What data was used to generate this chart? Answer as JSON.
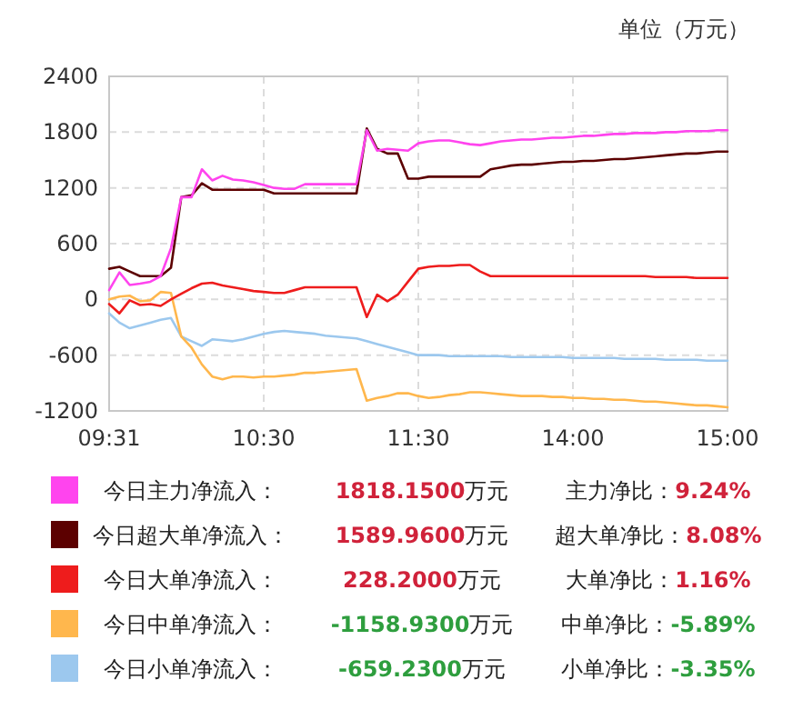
{
  "chart_data": {
    "type": "line",
    "ylabel": "单位（万元）",
    "categories": [
      "09:31",
      null,
      null,
      null,
      null,
      null,
      null,
      null,
      null,
      null,
      null,
      null,
      null,
      null,
      null,
      "10:30",
      null,
      null,
      null,
      null,
      null,
      null,
      null,
      null,
      null,
      null,
      null,
      null,
      null,
      null,
      "11:30",
      null,
      null,
      null,
      null,
      null,
      null,
      null,
      null,
      null,
      null,
      null,
      null,
      null,
      null,
      "14:00",
      null,
      null,
      null,
      null,
      null,
      null,
      null,
      null,
      null,
      null,
      null,
      null,
      null,
      null,
      "15:00"
    ],
    "ylim": [
      -1200,
      2400
    ],
    "yticks": [
      -1200,
      -600,
      0,
      600,
      1200,
      1800,
      2400
    ],
    "grid": true,
    "legend": "bottom",
    "line_style": "solid",
    "series": [
      {
        "name": "今日主力净流入：",
        "color": "#ff44ee",
        "values": [
          100,
          290,
          155,
          170,
          190,
          250,
          550,
          1100,
          1100,
          1400,
          1280,
          1330,
          1290,
          1280,
          1260,
          1230,
          1200,
          1190,
          1190,
          1240,
          1240,
          1240,
          1240,
          1240,
          1240,
          1820,
          1600,
          1620,
          1610,
          1600,
          1680,
          1700,
          1710,
          1710,
          1690,
          1670,
          1660,
          1680,
          1700,
          1710,
          1720,
          1720,
          1730,
          1740,
          1740,
          1750,
          1760,
          1760,
          1770,
          1780,
          1780,
          1790,
          1790,
          1790,
          1800,
          1800,
          1810,
          1810,
          1810,
          1820,
          1820
        ]
      },
      {
        "name": "今日超大单净流入：",
        "color": "#5c0000",
        "values": [
          330,
          350,
          300,
          250,
          250,
          250,
          340,
          1100,
          1120,
          1250,
          1180,
          1180,
          1180,
          1180,
          1180,
          1180,
          1140,
          1140,
          1140,
          1140,
          1140,
          1140,
          1140,
          1140,
          1140,
          1840,
          1620,
          1570,
          1570,
          1300,
          1300,
          1320,
          1320,
          1320,
          1320,
          1320,
          1320,
          1400,
          1420,
          1440,
          1450,
          1450,
          1460,
          1470,
          1480,
          1480,
          1490,
          1490,
          1500,
          1510,
          1510,
          1520,
          1530,
          1540,
          1550,
          1560,
          1570,
          1570,
          1580,
          1590,
          1590
        ]
      },
      {
        "name": "今日大单净流入：",
        "color": "#ee1c1c",
        "values": [
          -50,
          -150,
          -10,
          -60,
          -50,
          -70,
          0,
          60,
          120,
          170,
          180,
          150,
          130,
          110,
          90,
          80,
          70,
          70,
          100,
          130,
          130,
          130,
          130,
          130,
          130,
          -190,
          50,
          -20,
          50,
          190,
          330,
          350,
          360,
          360,
          370,
          370,
          300,
          250,
          250,
          250,
          250,
          250,
          250,
          250,
          250,
          250,
          250,
          250,
          250,
          250,
          250,
          250,
          250,
          240,
          240,
          240,
          240,
          230,
          230,
          230,
          230
        ]
      },
      {
        "name": "今日中单净流入：",
        "color": "#ffb74d",
        "values": [
          0,
          30,
          40,
          -20,
          -10,
          80,
          70,
          -400,
          -520,
          -700,
          -830,
          -860,
          -830,
          -830,
          -840,
          -830,
          -830,
          -820,
          -810,
          -790,
          -790,
          -780,
          -770,
          -760,
          -750,
          -1090,
          -1060,
          -1040,
          -1010,
          -1010,
          -1040,
          -1060,
          -1050,
          -1030,
          -1020,
          -1000,
          -1000,
          -1010,
          -1020,
          -1030,
          -1040,
          -1040,
          -1040,
          -1050,
          -1050,
          -1060,
          -1060,
          -1070,
          -1070,
          -1080,
          -1080,
          -1090,
          -1100,
          -1100,
          -1110,
          -1120,
          -1130,
          -1140,
          -1140,
          -1150,
          -1160
        ]
      },
      {
        "name": "今日小单净流入：",
        "color": "#9cc8ee",
        "values": [
          -150,
          -250,
          -310,
          -280,
          -250,
          -220,
          -200,
          -400,
          -450,
          -500,
          -430,
          -440,
          -450,
          -430,
          -400,
          -370,
          -350,
          -340,
          -350,
          -360,
          -370,
          -390,
          -400,
          -410,
          -420,
          -450,
          -480,
          -510,
          -540,
          -570,
          -600,
          -600,
          -600,
          -610,
          -610,
          -610,
          -610,
          -610,
          -610,
          -620,
          -620,
          -620,
          -620,
          -620,
          -620,
          -630,
          -630,
          -630,
          -630,
          -630,
          -640,
          -640,
          -640,
          -640,
          -650,
          -650,
          -650,
          -650,
          -660,
          -660,
          -660
        ]
      }
    ],
    "annotations": [
      "1818.1500万元",
      "主力净比：9.24%",
      "1589.9600万元",
      "超大单净比：8.08%",
      "228.2000万元",
      "大单净比：1.16%",
      "-1158.9300万元",
      "中单净比：-5.89%",
      "-659.2300万元",
      "小单净比：-3.35%"
    ]
  }
}
